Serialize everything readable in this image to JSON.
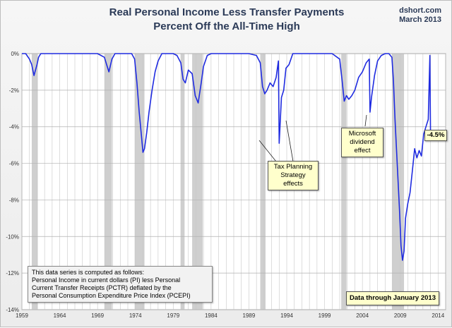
{
  "header": {
    "title_line1": "Real Personal Income Less Transfer Payments",
    "title_line2": "Percent Off the All-Time High",
    "source_line1": "dshort.com",
    "source_line2": "March 2013"
  },
  "annotations": {
    "tax_planning_line1": "Tax Planning",
    "tax_planning_line2": "Strategy",
    "tax_planning_line3": "effects",
    "microsoft_line1": "Microsoft",
    "microsoft_line2": "dividend",
    "microsoft_line3": "effect",
    "latest_value": "-4.5%",
    "data_through": "Data through January 2013"
  },
  "note": {
    "line1": "This data series is computed as follows:",
    "line2": "Personal Income in current dollars  (PI) less Personal",
    "line3": "Current Transfer Receipts (PCTR) deflated by the",
    "line4": "Personal Consumption Expenditure Price Index (PCEPI)"
  },
  "chart_data": {
    "type": "line",
    "title": "Real Personal Income Less Transfer Payments Percent Off the All-Time High",
    "xlim": [
      1959,
      2015
    ],
    "ylim": [
      -14,
      0
    ],
    "x_ticks": [
      "1959",
      "1964",
      "1969",
      "1974",
      "1979",
      "1984",
      "1989",
      "1994",
      "1999",
      "2004",
      "2009",
      "2014"
    ],
    "y_ticks": [
      "0%",
      "-2%",
      "-4%",
      "-6%",
      "-8%",
      "-10%",
      "-12%",
      "-14%"
    ],
    "grid": true,
    "recessions": [
      [
        1960.3,
        1961.1
      ],
      [
        1969.9,
        1970.9
      ],
      [
        1973.9,
        1975.2
      ],
      [
        1980.0,
        1980.5
      ],
      [
        1981.5,
        1982.9
      ],
      [
        1990.5,
        1991.2
      ],
      [
        2001.2,
        2001.9
      ],
      [
        2007.9,
        2009.5
      ]
    ],
    "colors": {
      "line": "#1f2be0",
      "recession": "#cfcfcf",
      "grid": "#c8c8c8",
      "callout_bg": "#ffffcc"
    },
    "series": [
      {
        "x": [
          1959.0,
          1959.5,
          1960.0,
          1960.3,
          1960.6,
          1961.0,
          1961.2,
          1961.5,
          1962.0,
          1963.0,
          1964.0,
          1965.0,
          1966.0,
          1967.0,
          1968.0,
          1969.0,
          1969.9,
          1970.2,
          1970.5,
          1970.9,
          1971.3,
          1971.8,
          1972.2,
          1973.0,
          1973.5,
          1973.9,
          1974.2,
          1974.5,
          1974.8,
          1975.0,
          1975.2,
          1975.5,
          1975.8,
          1976.2,
          1976.6,
          1977.0,
          1977.5,
          1978.0,
          1978.5,
          1979.0,
          1979.5,
          1980.0,
          1980.3,
          1980.6,
          1981.0,
          1981.5,
          1981.9,
          1982.3,
          1982.7,
          1983.0,
          1983.5,
          1984.0,
          1984.5,
          1985.0,
          1986.0,
          1987.0,
          1988.0,
          1989.0,
          1990.0,
          1990.5,
          1990.8,
          1991.1,
          1991.4,
          1991.8,
          1992.2,
          1992.6,
          1992.9,
          1993.0,
          1993.3,
          1993.6,
          1993.9,
          1994.3,
          1994.8,
          1995.3,
          1995.8,
          1996.5,
          1997.0,
          1997.5,
          1998.0,
          1999.0,
          2000.0,
          2001.0,
          2001.3,
          2001.6,
          2001.9,
          2002.2,
          2002.6,
          2003.0,
          2003.5,
          2004.0,
          2004.5,
          2004.9,
          2005.0,
          2005.2,
          2005.6,
          2006.0,
          2006.5,
          2007.0,
          2007.5,
          2007.9,
          2008.1,
          2008.3,
          2008.6,
          2008.9,
          2009.1,
          2009.3,
          2009.5,
          2009.7,
          2010.0,
          2010.3,
          2010.6,
          2010.9,
          2011.2,
          2011.5,
          2011.8,
          2012.1,
          2012.4,
          2012.7,
          2012.92,
          2013.0
        ],
        "y": [
          0,
          0,
          -0.3,
          -0.6,
          -1.2,
          -0.6,
          -0.2,
          0,
          0,
          0,
          0,
          0,
          0,
          0,
          0,
          0,
          -0.2,
          -0.6,
          -1.0,
          -0.3,
          0,
          0,
          0,
          0,
          0,
          -0.3,
          -1.6,
          -3.2,
          -4.5,
          -5.4,
          -5.2,
          -4.3,
          -3.2,
          -2.0,
          -1.0,
          -0.4,
          0,
          0,
          0,
          0,
          -0.1,
          -0.5,
          -1.4,
          -1.6,
          -0.9,
          -1.1,
          -2.3,
          -2.7,
          -1.6,
          -0.7,
          -0.1,
          0,
          0,
          0,
          0,
          0,
          0,
          0,
          -0.1,
          -0.5,
          -1.8,
          -2.2,
          -2.0,
          -1.6,
          -1.8,
          -1.3,
          -0.4,
          -4.9,
          -2.4,
          -2.0,
          -0.8,
          -0.6,
          0,
          0,
          0,
          0,
          0,
          0,
          0,
          0,
          0,
          -0.3,
          -1.4,
          -2.6,
          -2.3,
          -2.5,
          -2.3,
          -2.0,
          -1.3,
          -1.0,
          -0.5,
          -0.3,
          -3.2,
          -2.4,
          -1.2,
          -0.4,
          -0.1,
          0,
          0,
          -0.2,
          -1.5,
          -3.5,
          -6.0,
          -8.5,
          -10.5,
          -11.3,
          -10.8,
          -9.0,
          -8.2,
          -7.6,
          -6.4,
          -5.2,
          -5.7,
          -5.3,
          -5.6,
          -4.4,
          -4.0,
          -3.6,
          -0.1,
          -4.5
        ]
      }
    ]
  }
}
